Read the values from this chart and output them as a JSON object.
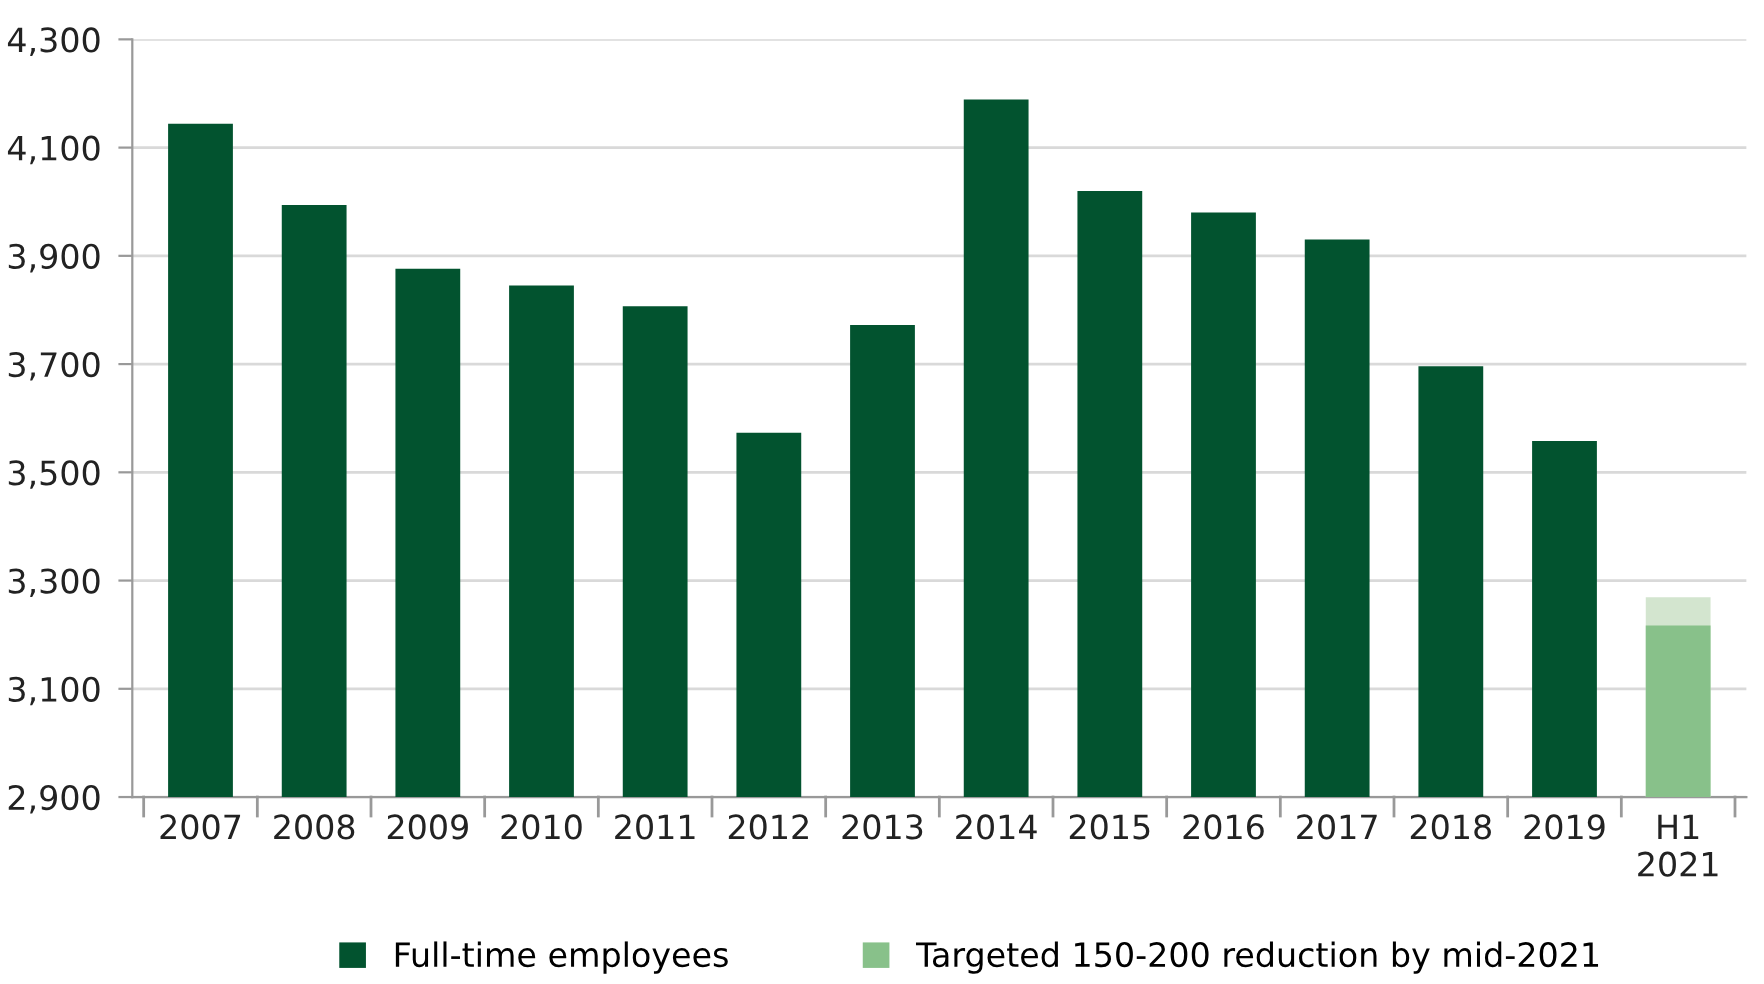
{
  "chart_data": {
    "type": "bar",
    "categories": [
      "2007",
      "2008",
      "2009",
      "2010",
      "2011",
      "2012",
      "2013",
      "2014",
      "2015",
      "2016",
      "2017",
      "2018",
      "2019",
      "H1\n2021"
    ],
    "series": [
      {
        "name": "Full-time employees",
        "color": "#02532f",
        "values": [
          4144,
          3994,
          3876,
          3845,
          3807,
          3573,
          3772,
          4189,
          4020,
          3980,
          3930,
          3696,
          3558,
          null
        ]
      },
      {
        "color": "#d3e5cf",
        "values": [
          null,
          null,
          null,
          null,
          null,
          null,
          null,
          null,
          null,
          null,
          null,
          null,
          null,
          3269
        ]
      },
      {
        "name": "Targeted 150-200 reduction by mid-2021",
        "color": "#88c18a",
        "values": [
          null,
          null,
          null,
          null,
          null,
          null,
          null,
          null,
          null,
          null,
          null,
          null,
          null,
          3217
        ]
      }
    ],
    "ylim": [
      2900,
      4300
    ],
    "yticks": [
      {
        "value": 2900,
        "label": "2,900"
      },
      {
        "value": 3100,
        "label": "3,100"
      },
      {
        "value": 3300,
        "label": "3,300"
      },
      {
        "value": 3500,
        "label": "3,500"
      },
      {
        "value": 3700,
        "label": "3,700"
      },
      {
        "value": 3900,
        "label": "3,900"
      },
      {
        "value": 4100,
        "label": "4,100"
      },
      {
        "value": 4300,
        "label": "4,300"
      }
    ],
    "grid": "y",
    "legend": "bottom"
  }
}
